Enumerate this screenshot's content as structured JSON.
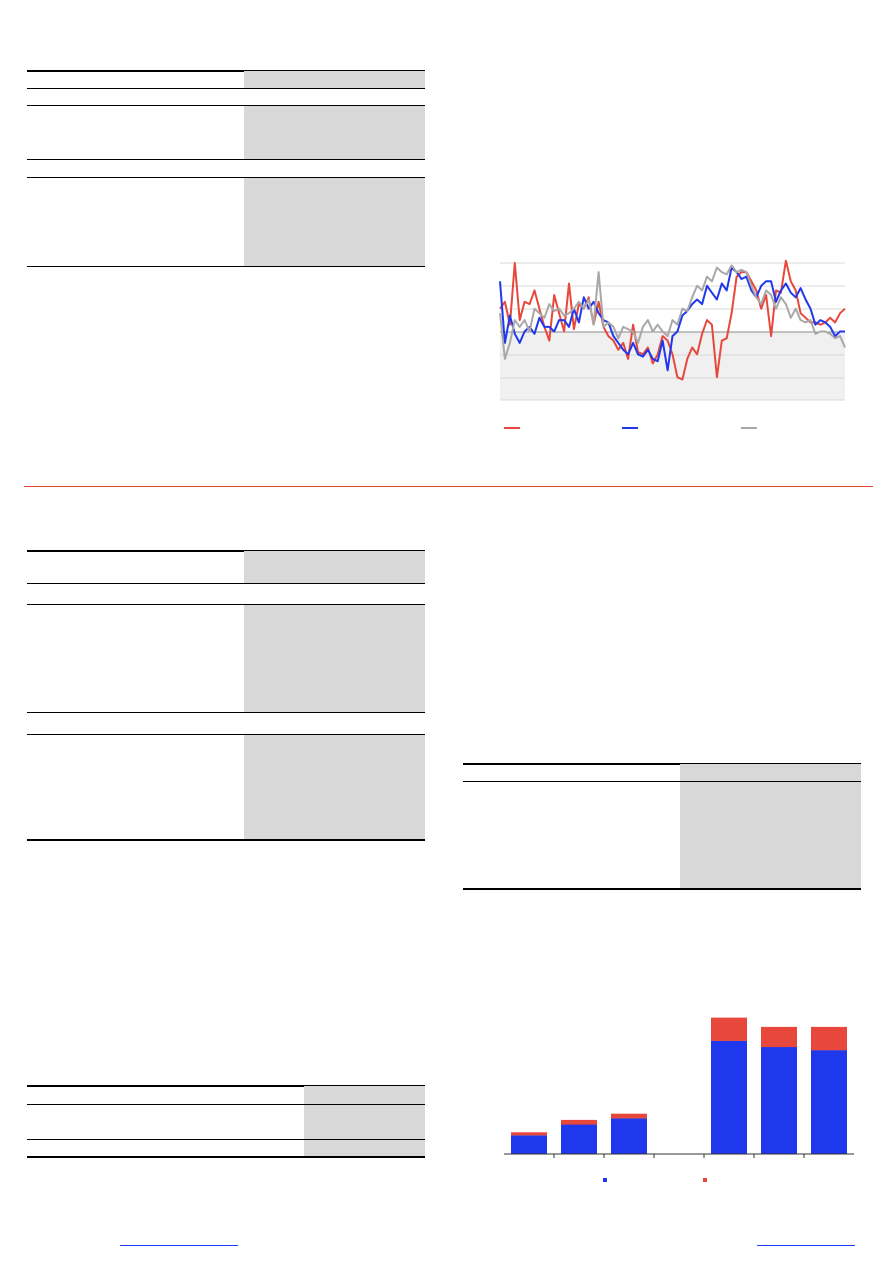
{
  "colors": {
    "accent_red": "#e8473b",
    "accent_blue": "#1f38ee",
    "accent_gray": "#a8a8a8",
    "section_rule": "#e0462f",
    "table_shade": "#d8d8d8",
    "link": "#1f3fff"
  },
  "chart_data": [
    {
      "type": "line",
      "ylim": [
        -3,
        3
      ],
      "grid": true,
      "legend": "bottom",
      "series": [
        {
          "color": "#e8473b",
          "values": [
            1.0,
            1.3,
            0.3,
            3.0,
            0.5,
            1.3,
            1.2,
            1.8,
            1.0,
            0.2,
            -0.4,
            1.6,
            0.8,
            0.0,
            2.1,
            0.1,
            1.2,
            1.0,
            1.5,
            0.3,
            1.3,
            0.2,
            -0.2,
            -0.4,
            -0.8,
            -0.5,
            -1.2,
            0.3,
            -0.9,
            -1.0,
            -0.7,
            -1.4,
            -1.0,
            -0.2,
            -0.4,
            -1.0,
            -2.0,
            -2.1,
            -1.2,
            -0.7,
            -1.0,
            -0.1,
            0.5,
            0.3,
            -2.0,
            -0.4,
            -0.3,
            0.8,
            2.4,
            2.6,
            2.6,
            2.2,
            1.8,
            1.0,
            1.6,
            -0.2,
            1.8,
            1.7,
            3.1,
            2.2,
            1.8,
            0.8,
            0.6,
            0.4,
            0.4,
            0.3,
            0.4,
            0.6,
            0.4,
            0.8,
            1.0
          ]
        },
        {
          "color": "#1f38ee",
          "values": [
            2.2,
            -0.5,
            0.7,
            -0.1,
            -0.5,
            0.0,
            0.2,
            -0.1,
            0.6,
            0.2,
            0.2,
            0.0,
            0.5,
            0.5,
            0.2,
            1.0,
            0.4,
            1.5,
            1.0,
            1.3,
            0.8,
            0.5,
            0.4,
            -0.2,
            -0.5,
            -0.8,
            -1.0,
            -0.5,
            -1.0,
            -1.1,
            -0.8,
            -1.2,
            -1.3,
            -0.4,
            -1.7,
            -0.2,
            0.0,
            0.7,
            0.9,
            1.2,
            1.4,
            1.2,
            2.0,
            1.7,
            1.4,
            2.1,
            1.8,
            2.8,
            2.6,
            2.3,
            2.4,
            1.8,
            1.5,
            2.0,
            2.2,
            2.2,
            1.3,
            1.8,
            2.1,
            1.7,
            1.5,
            1.9,
            1.4,
            1.0,
            0.3,
            0.5,
            0.4,
            0.2,
            -0.2,
            0.0,
            0.0
          ]
        },
        {
          "color": "#a8a8a8",
          "values": [
            0.8,
            -1.2,
            -0.5,
            0.5,
            0.2,
            0.5,
            0.0,
            1.0,
            0.8,
            0.6,
            1.2,
            0.9,
            1.0,
            0.7,
            0.8,
            1.0,
            1.3,
            1.0,
            1.4,
            0.3,
            2.6,
            0.2,
            0.4,
            0.2,
            -0.3,
            0.2,
            0.1,
            0.0,
            -0.5,
            0.2,
            0.5,
            0.0,
            0.3,
            0.0,
            -0.2,
            0.5,
            0.3,
            1.0,
            0.9,
            1.5,
            2.0,
            1.8,
            2.4,
            2.2,
            2.8,
            2.6,
            2.5,
            2.9,
            2.6,
            2.7,
            2.6,
            2.0,
            1.5,
            1.2,
            1.8,
            1.6,
            1.0,
            1.5,
            1.2,
            0.6,
            1.0,
            0.5,
            0.4,
            0.5,
            -0.1,
            0.0,
            0.0,
            -0.1,
            -0.3,
            -0.2,
            -0.7
          ]
        }
      ]
    },
    {
      "type": "bar",
      "stacked": true,
      "categories": [
        "",
        "",
        "",
        "",
        "",
        "",
        ""
      ],
      "series": [
        {
          "color": "#1f38ee",
          "values": [
            12,
            19,
            23,
            0,
            73,
            69,
            67
          ]
        },
        {
          "color": "#e8473b",
          "values": [
            2,
            3,
            3,
            0,
            15,
            13,
            15
          ]
        }
      ]
    }
  ]
}
